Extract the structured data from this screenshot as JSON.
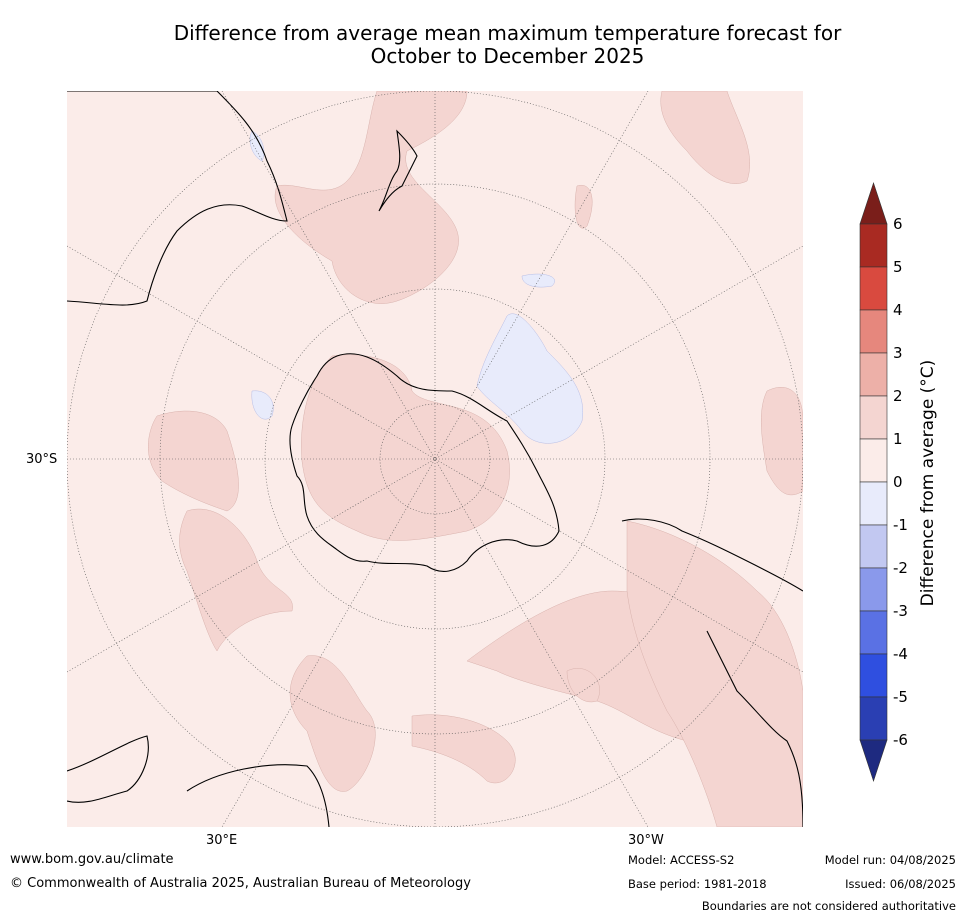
{
  "title_line1": "Difference from average mean maximum temperature forecast for",
  "title_line2": "October to December 2025",
  "map_labels": {
    "lat_30s": "30°S",
    "lon_30e": "30°E",
    "lon_30w": "30°W"
  },
  "colorbar": {
    "label": "Difference from average (°C)",
    "ticks": [
      "6",
      "5",
      "4",
      "3",
      "2",
      "1",
      "0",
      "-1",
      "-2",
      "-3",
      "-4",
      "-5",
      "-6"
    ],
    "colors": {
      "over": "#7a1e1a",
      "c5_6": "#a92a22",
      "c4_5": "#d94a3f",
      "c3_4": "#e6877d",
      "c2_3": "#edb0a8",
      "c1_2": "#f4d5d1",
      "c0_1": "#fbece9",
      "cm1_0": "#e8ebfb",
      "cm2_m1": "#c2c8f1",
      "cm3_m2": "#8a99eb",
      "cm4_m3": "#5a71e4",
      "cm5_m4": "#2f4fe0",
      "cm6_m5": "#2a3fb3",
      "under": "#1e2a80"
    }
  },
  "footer": {
    "website": "www.bom.gov.au/climate",
    "copyright": "© Commonwealth of Australia 2025, Australian Bureau of Meteorology",
    "model": "Model: ACCESS-S2",
    "base_period": "Base period: 1981-2018",
    "model_run": "Model run: 04/08/2025",
    "issued": "Issued: 06/08/2025",
    "disclaimer": "Boundaries are not considered authoritative"
  }
}
